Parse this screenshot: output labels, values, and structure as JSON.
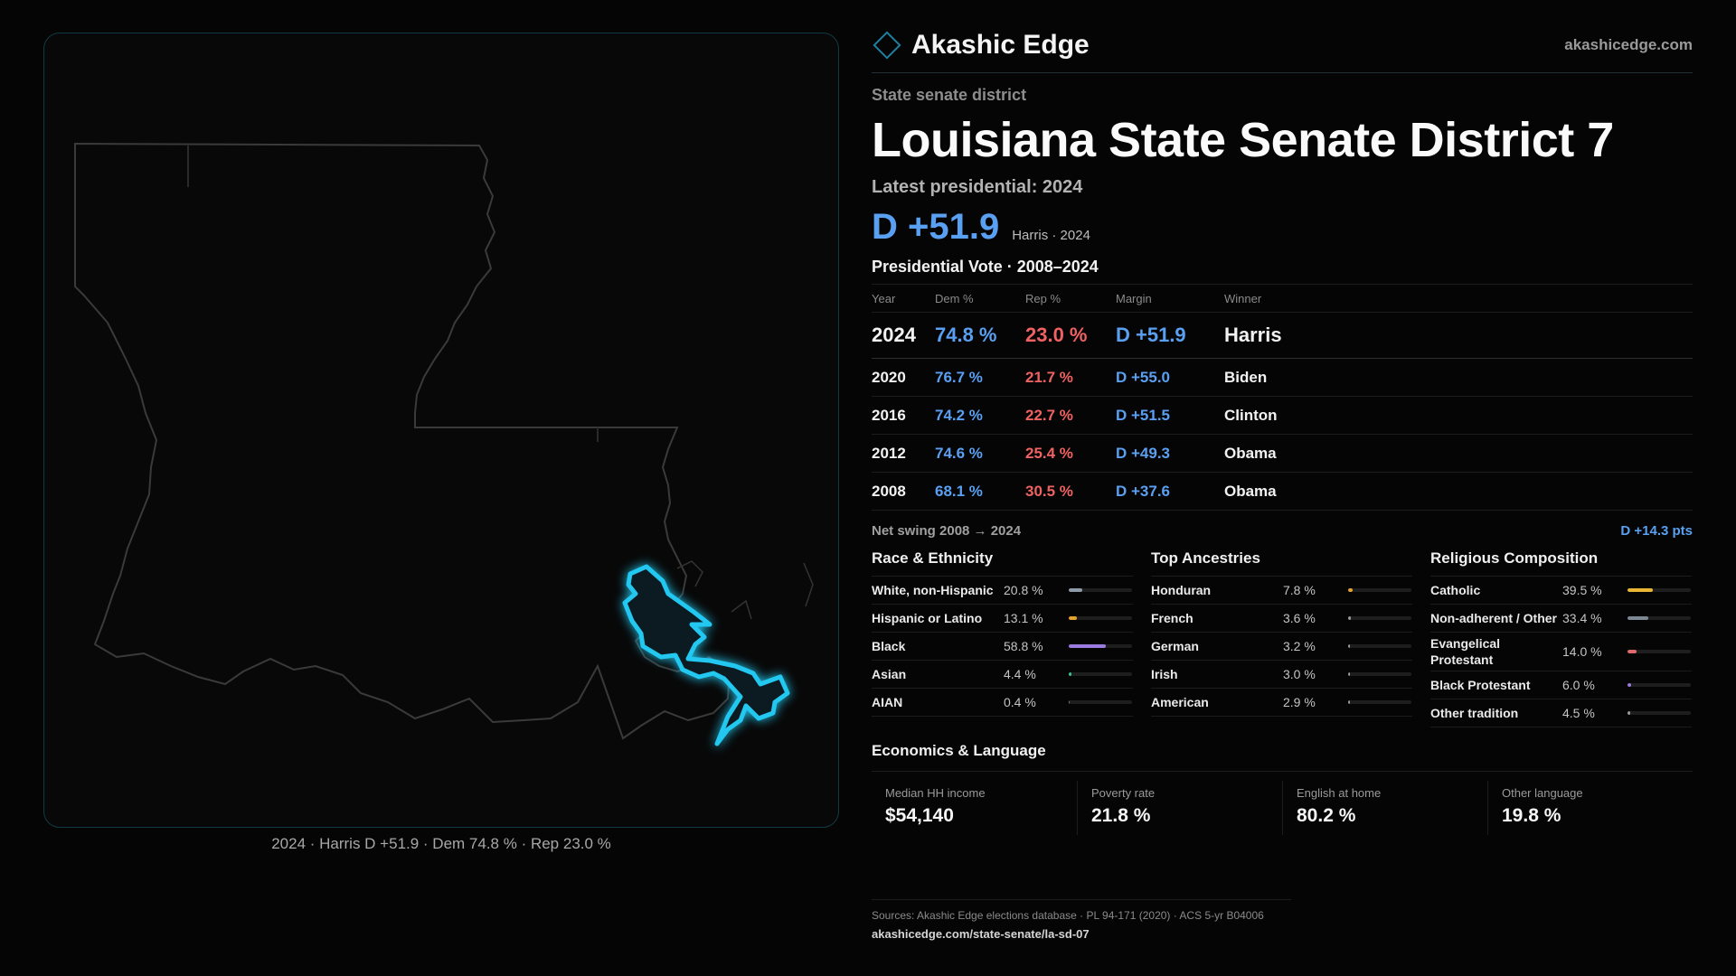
{
  "brand": {
    "name": "Akashic Edge",
    "url": "akashicedge.com",
    "logo_icon": "diamond-outline-icon",
    "accent": "#1f7fa0"
  },
  "kicker": "State senate district",
  "title": "Louisiana State Senate District 7",
  "latest_label": "Latest presidential: 2024",
  "headline": {
    "margin": "D +51.9",
    "note": "Harris · 2024"
  },
  "presidential": {
    "title": "Presidential Vote · 2008–2024",
    "headers": {
      "year": "Year",
      "dem": "Dem %",
      "rep": "Rep %",
      "margin": "Margin",
      "winner": "Winner"
    },
    "rows": [
      {
        "year": "2024",
        "dem": "74.8 %",
        "rep": "23.0 %",
        "margin": "D +51.9",
        "winner": "Harris"
      },
      {
        "year": "2020",
        "dem": "76.7 %",
        "rep": "21.7 %",
        "margin": "D +55.0",
        "winner": "Biden"
      },
      {
        "year": "2016",
        "dem": "74.2 %",
        "rep": "22.7 %",
        "margin": "D +51.5",
        "winner": "Clinton"
      },
      {
        "year": "2012",
        "dem": "74.6 %",
        "rep": "25.4 %",
        "margin": "D +49.3",
        "winner": "Obama"
      },
      {
        "year": "2008",
        "dem": "68.1 %",
        "rep": "30.5 %",
        "margin": "D +37.6",
        "winner": "Obama"
      }
    ],
    "colors": {
      "dem": "#5aa0f2",
      "rep": "#f06262"
    }
  },
  "swing": {
    "label": "Net swing 2008 → 2024",
    "value": "D +14.3 pts"
  },
  "race": {
    "title": "Race & Ethnicity",
    "items": [
      {
        "label": "White, non-Hispanic",
        "value": "20.8 %",
        "share": 0.208,
        "color": "#8f9aa8"
      },
      {
        "label": "Hispanic or Latino",
        "value": "13.1 %",
        "share": 0.131,
        "color": "#e3a22f"
      },
      {
        "label": "Black",
        "value": "58.8 %",
        "share": 0.588,
        "color": "#9b7be0"
      },
      {
        "label": "Asian",
        "value": "4.4 %",
        "share": 0.044,
        "color": "#35c48a"
      },
      {
        "label": "AIAN",
        "value": "0.4 %",
        "share": 0.004,
        "color": "#7a7a7a"
      }
    ]
  },
  "ancestry": {
    "title": "Top Ancestries",
    "items": [
      {
        "label": "Honduran",
        "value": "7.8 %",
        "share": 0.078,
        "color": "#e3a22f"
      },
      {
        "label": "French",
        "value": "3.6 %",
        "share": 0.036,
        "color": "#9a9a9a"
      },
      {
        "label": "German",
        "value": "3.2 %",
        "share": 0.032,
        "color": "#9a9a9a"
      },
      {
        "label": "Irish",
        "value": "3.0 %",
        "share": 0.03,
        "color": "#9a9a9a"
      },
      {
        "label": "American",
        "value": "2.9 %",
        "share": 0.029,
        "color": "#9a9a9a"
      }
    ]
  },
  "religion": {
    "title": "Religious Composition",
    "items": [
      {
        "label": "Catholic",
        "value": "39.5 %",
        "share": 0.395,
        "color": "#e8b634"
      },
      {
        "label": "Non-adherent / Other",
        "value": "33.4 %",
        "share": 0.334,
        "color": "#7d8794"
      },
      {
        "label": "Evangelical Protestant",
        "value": "14.0 %",
        "share": 0.14,
        "color": "#e06a6a"
      },
      {
        "label": "Black Protestant",
        "value": "6.0 %",
        "share": 0.06,
        "color": "#9b7be0"
      },
      {
        "label": "Other tradition",
        "value": "4.5 %",
        "share": 0.045,
        "color": "#9a9a9a"
      }
    ]
  },
  "economics": {
    "title": "Economics & Language",
    "items": [
      {
        "label": "Median HH income",
        "value": "$54,140"
      },
      {
        "label": "Poverty rate",
        "value": "21.8 %"
      },
      {
        "label": "English at home",
        "value": "80.2 %"
      },
      {
        "label": "Other language",
        "value": "19.8 %"
      }
    ]
  },
  "map": {
    "caption": "2024 · Harris D +51.9 · Dem 74.8 % · Rep 23.0 %",
    "highlight_color": "#22c8f0"
  },
  "sources": {
    "text": "Sources: Akashic Edge elections database · PL 94-171 (2020) · ACS 5-yr B04006",
    "url": "akashicedge.com/state-senate/la-sd-07"
  }
}
